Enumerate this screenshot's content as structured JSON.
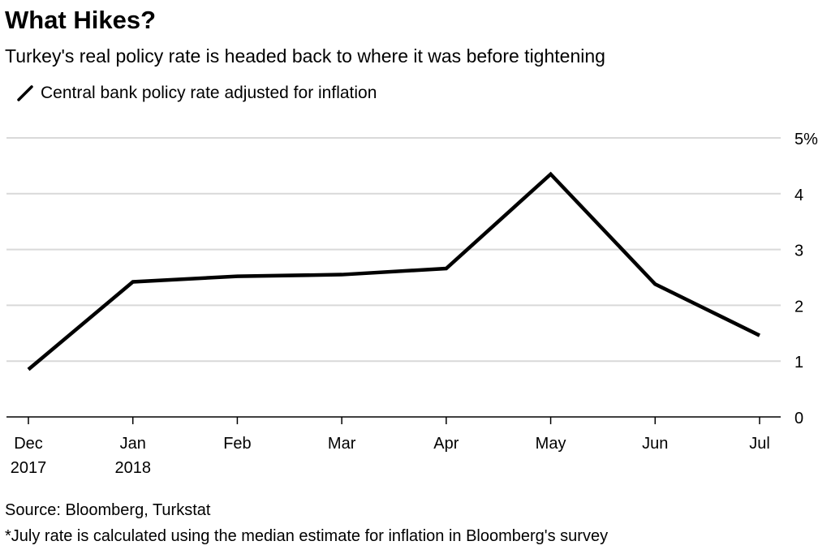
{
  "title": "What Hikes?",
  "subtitle": "Turkey's real policy rate is headed back to where it was before tightening",
  "source": "Source: Bloomberg, Turkstat",
  "footnote": "*July rate is calculated using the median estimate for inflation in Bloomberg's survey",
  "chart_data": {
    "type": "line",
    "title": "What Hikes?",
    "subtitle": "Turkey's real policy rate is headed back to where it was before tightening",
    "xlabel": "",
    "ylabel": "",
    "categories": [
      "Dec 2017",
      "Jan 2018",
      "Feb",
      "Mar",
      "Apr",
      "May",
      "Jun",
      "Jul"
    ],
    "x_tick_labels": [
      [
        "Dec",
        "2017"
      ],
      [
        "Jan",
        "2018"
      ],
      [
        "Feb"
      ],
      [
        "Mar"
      ],
      [
        "Apr"
      ],
      [
        "May"
      ],
      [
        "Jun"
      ],
      [
        "Jul"
      ]
    ],
    "series": [
      {
        "name": "Central bank policy rate adjusted for inflation",
        "values": [
          0.85,
          2.42,
          2.52,
          2.55,
          2.66,
          4.35,
          2.38,
          1.46
        ],
        "color": "#000000"
      }
    ],
    "ylim": [
      0,
      5
    ],
    "y_ticks": [
      0,
      1,
      2,
      3,
      4,
      5
    ],
    "y_tick_labels": [
      "0",
      "1",
      "2",
      "3",
      "4",
      "5%"
    ],
    "y_axis_side": "right",
    "grid": true,
    "legend_position": "top-left"
  }
}
